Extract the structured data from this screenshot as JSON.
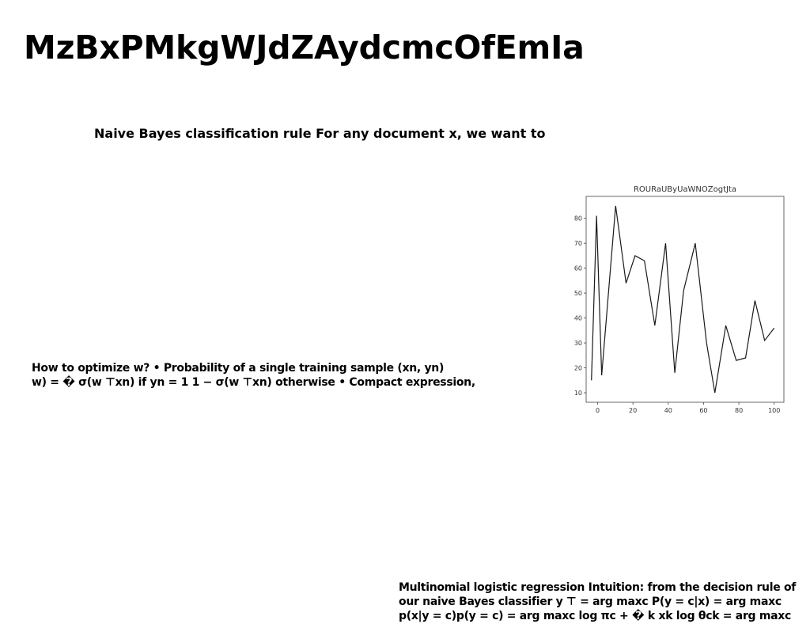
{
  "page": {
    "title": "MzBxPMkgWJdZAydcmcOfEmIa",
    "subtitle": "Naive Bayes classification rule For any document x, we want to"
  },
  "text_blocks": [
    {
      "lines": [
        "How to optimize w? • Probability of a single training sample (xn, yn)",
        "w) = � σ(w ⊤xn) if yn = 1 1 − σ(w ⊤xn) otherwise • Compact expression,"
      ]
    },
    {
      "lines": [
        "Multinomial logistic regression Intuition: from the decision rule of",
        "our naive Bayes classifier y ⊤ = arg maxc P(y = c|x) = arg maxc",
        "p(x|y = c)p(y = c) = arg maxc log πc + � k xk log θck = arg maxc"
      ]
    }
  ],
  "chart_data": {
    "type": "line",
    "title": "ROURaUByUaWNOZogtJta",
    "xlabel": "",
    "ylabel": "",
    "xlim": [
      -6.5,
      105.5
    ],
    "ylim": [
      6.2,
      88.8
    ],
    "xticks": [
      0,
      20,
      40,
      60,
      80,
      100
    ],
    "yticks": [
      10,
      20,
      30,
      40,
      50,
      60,
      70,
      80
    ],
    "grid": false,
    "line_color": "#1a1a1a",
    "series": [
      {
        "x": [
          -3.5,
          -0.6,
          2.3,
          10.2,
          16.1,
          21.2,
          26.5,
          32.4,
          38.5,
          43.7,
          48.7,
          55.3,
          61.7,
          66.4,
          72.6,
          78.5,
          83.8,
          89.1,
          94.6,
          100.0
        ],
        "y": [
          15,
          81,
          17,
          85,
          54,
          65,
          63,
          37,
          70,
          18,
          51,
          70,
          30,
          10,
          37,
          23,
          24,
          47,
          31,
          36
        ]
      }
    ]
  }
}
